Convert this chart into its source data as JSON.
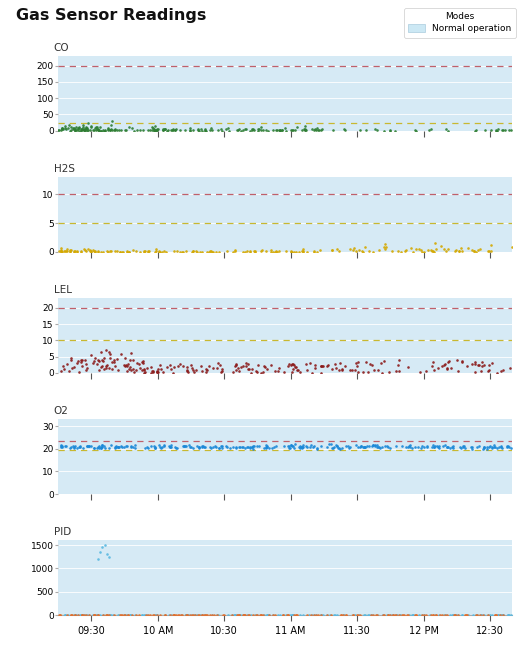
{
  "title": "Gas Sensor Readings",
  "legend_label": "Normal operation",
  "legend_color": "#cce8f4",
  "bg_color": "#d6eaf5",
  "fig_bg": "#ffffff",
  "subplots": [
    {
      "label": "CO",
      "ylim": [
        0,
        230
      ],
      "yticks": [
        0,
        50,
        100,
        150,
        200
      ],
      "danger_line": 200,
      "danger_color": "#c0606a",
      "warn_line": 25,
      "warn_color": "#c8b830",
      "dot_color": "#2e7d32",
      "dot_size": 3.5
    },
    {
      "label": "H2S",
      "ylim": [
        0,
        13
      ],
      "yticks": [
        0,
        5,
        10
      ],
      "danger_line": 10,
      "danger_color": "#c0606a",
      "warn_line": 5,
      "warn_color": "#c8b830",
      "dot_color": "#d4a800",
      "dot_size": 3.5
    },
    {
      "label": "LEL",
      "ylim": [
        0,
        23
      ],
      "yticks": [
        0,
        5,
        10,
        15,
        20
      ],
      "danger_line": 20,
      "danger_color": "#c0606a",
      "warn_line": 10,
      "warn_color": "#c8b830",
      "dot_color": "#8b1a1a",
      "dot_size": 3.5
    },
    {
      "label": "O2",
      "ylim": [
        0,
        33
      ],
      "yticks": [
        0,
        10,
        20,
        30
      ],
      "danger_line": 23.5,
      "danger_color": "#c0606a",
      "warn_line": 19.5,
      "warn_color": "#c8b830",
      "dot_color": "#1a88d8",
      "dot_size": 3.5
    },
    {
      "label": "PID",
      "ylim": [
        0,
        1600
      ],
      "yticks": [
        0,
        500,
        1000,
        1500
      ],
      "danger_line": null,
      "danger_color": "#c0606a",
      "warn_line": 15,
      "warn_color": "#c8b830",
      "dot_color": "#5ab8e0",
      "dot_color2": "#e07030",
      "dot_size": 3.5
    }
  ],
  "total_minutes": 205,
  "xtick_labels": [
    "09:30",
    "10 AM",
    "10:30",
    "11 AM",
    "11:30",
    "12 PM",
    "12:30"
  ],
  "xtick_minutes": [
    15,
    45,
    75,
    105,
    135,
    165,
    195
  ]
}
